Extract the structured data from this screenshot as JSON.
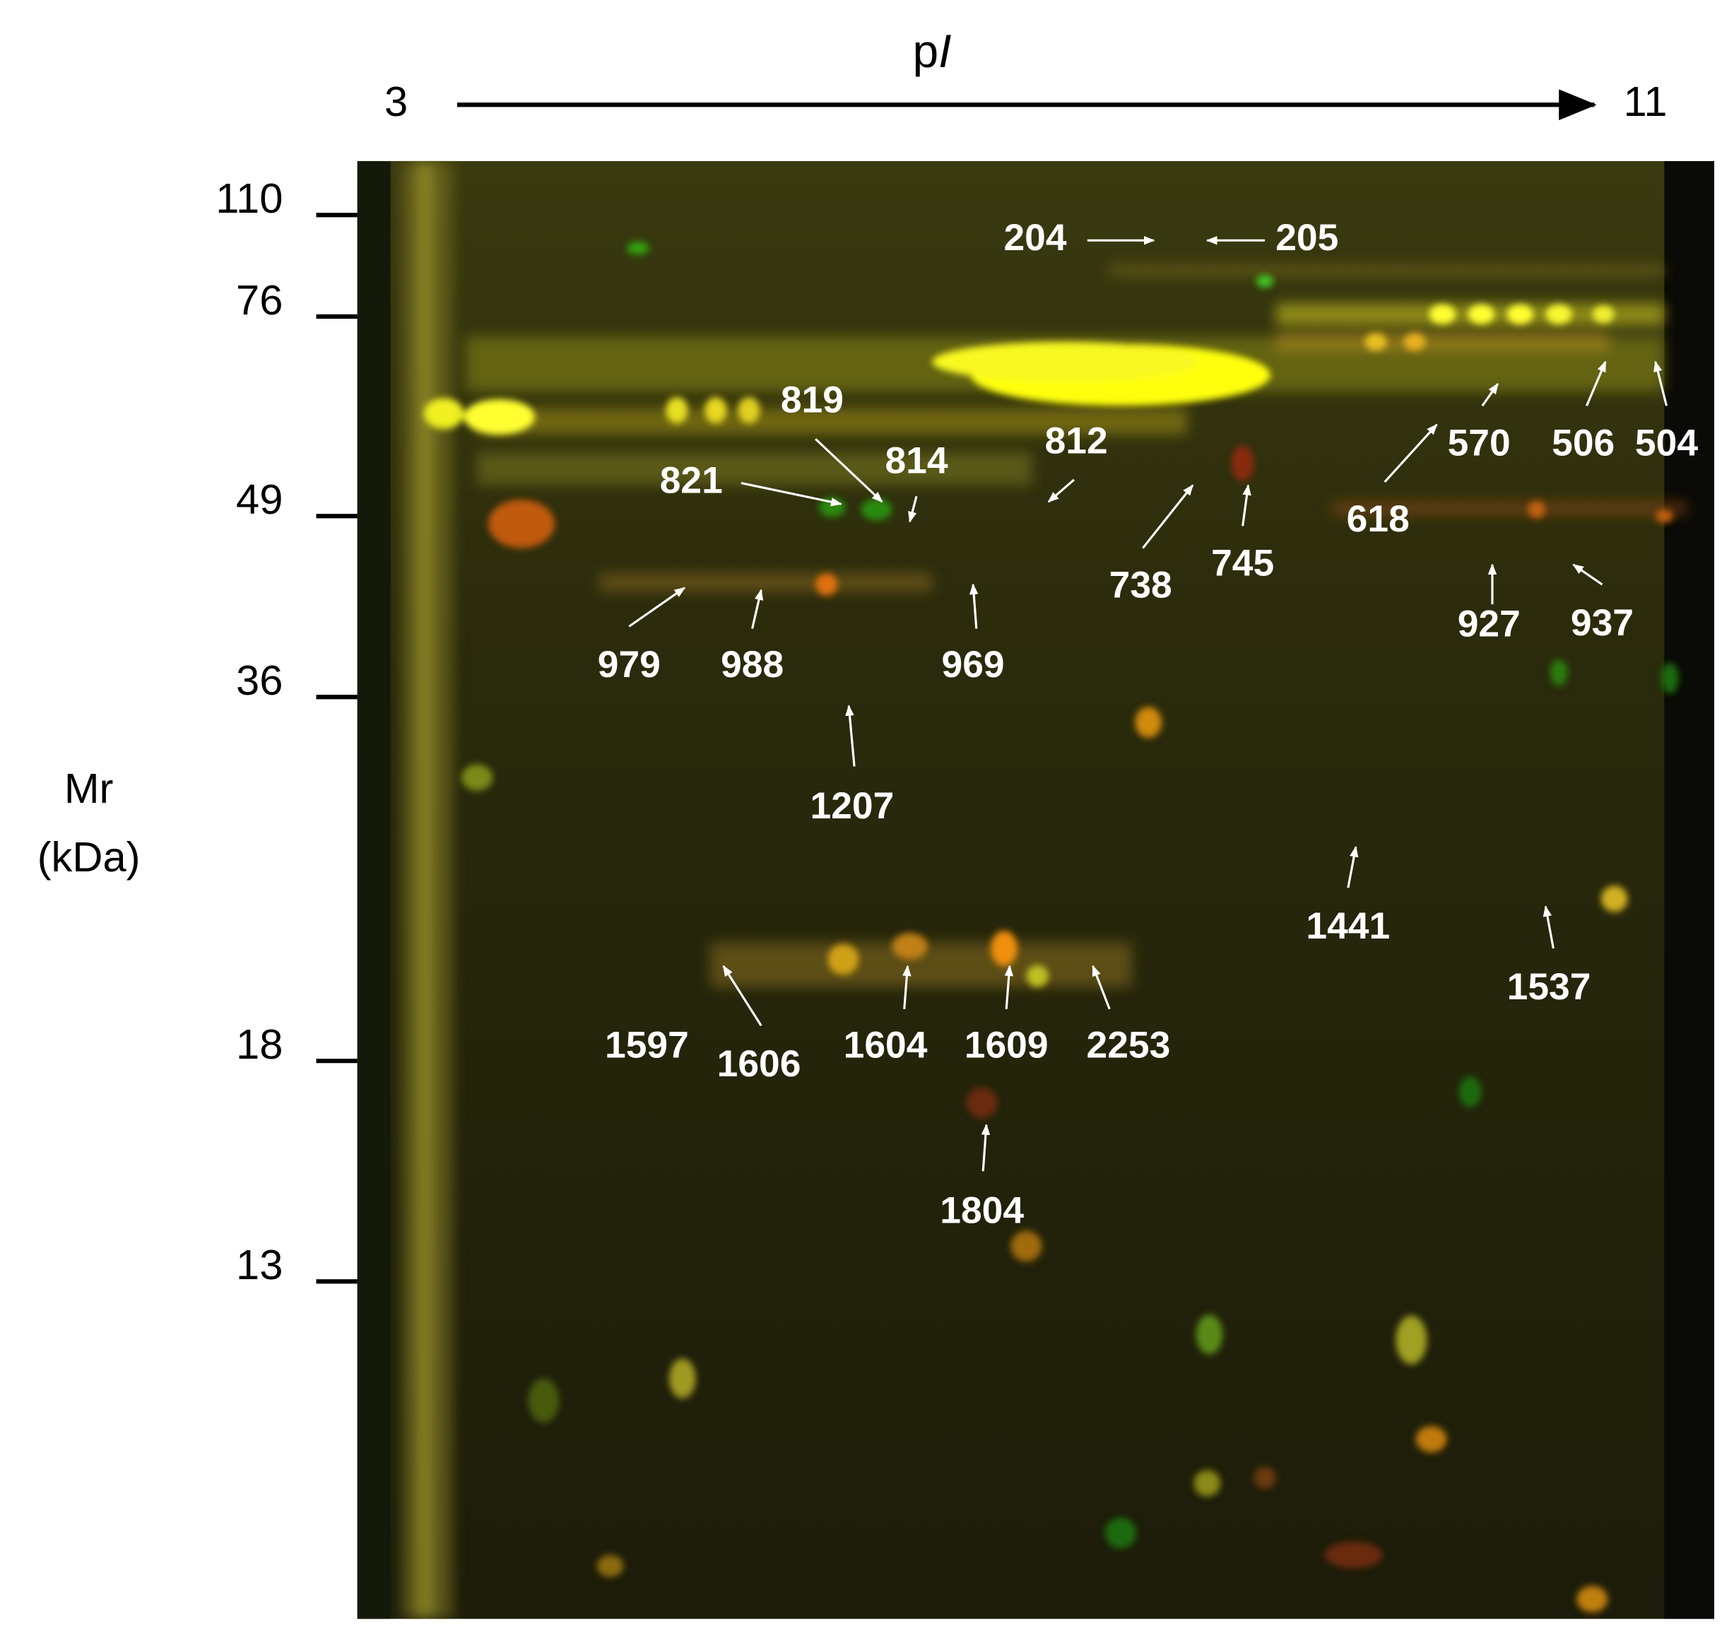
{
  "header": {
    "pi_label": "pI",
    "pi_min": "3",
    "pi_max": "11",
    "mr_label": "Mr",
    "mr_unit": "(kDa)"
  },
  "mr_ticks": [
    110,
    76,
    49,
    36,
    18,
    13
  ],
  "spots": [
    "204",
    "205",
    "819",
    "814",
    "821",
    "812",
    "738",
    "745",
    "618",
    "570",
    "506",
    "504",
    "927",
    "937",
    "979",
    "988",
    "969",
    "1207",
    "1441",
    "1537",
    "1597",
    "1606",
    "1604",
    "1609",
    "2253",
    "1804"
  ]
}
